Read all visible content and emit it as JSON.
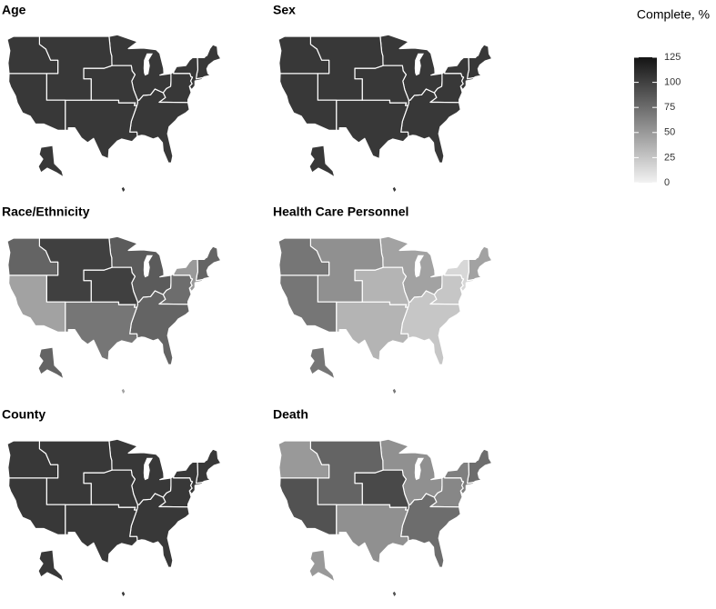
{
  "legend": {
    "title": "Complete, %",
    "lim": [
      0,
      125
    ],
    "ticks": [
      0,
      25,
      50,
      75,
      100,
      125
    ],
    "low": "#f2f2f2",
    "high": "#141414"
  },
  "panels": [
    {
      "title": "Age",
      "values": [
        105,
        105,
        105,
        105,
        105,
        105,
        105,
        105,
        105,
        105
      ]
    },
    {
      "title": "Sex",
      "values": [
        105,
        105,
        105,
        105,
        105,
        105,
        105,
        105,
        105,
        105
      ]
    },
    {
      "title": "Race/Ethnicity",
      "values": [
        80,
        50,
        75,
        80,
        85,
        70,
        100,
        100,
        45,
        80
      ]
    },
    {
      "title": "Health Care Personnel",
      "values": [
        45,
        15,
        25,
        25,
        45,
        35,
        35,
        55,
        70,
        70
      ]
    },
    {
      "title": "County",
      "values": [
        105,
        105,
        105,
        105,
        105,
        105,
        105,
        105,
        105,
        105
      ]
    },
    {
      "title": "Death",
      "values": [
        75,
        65,
        60,
        75,
        55,
        55,
        95,
        80,
        90,
        50
      ]
    }
  ]
}
